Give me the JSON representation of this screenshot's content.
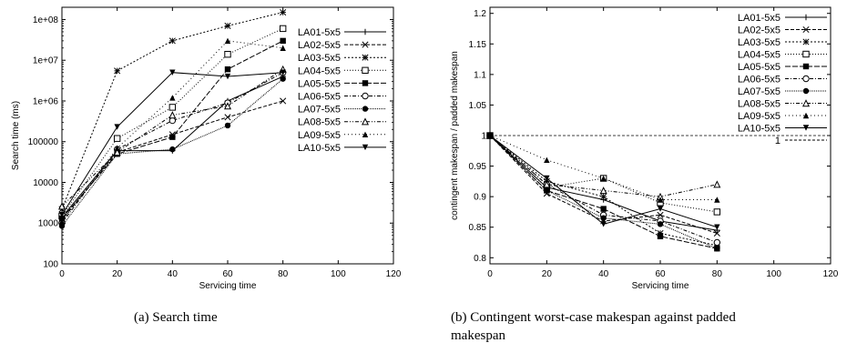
{
  "captions": {
    "left": "(a)  Search time",
    "right_line1": "(b)  Contingent   worst-case   makespan   against   padded",
    "right_line2": "makespan"
  },
  "legend_series": [
    {
      "name": "LA01-5x5",
      "marker": "plus",
      "dash": ""
    },
    {
      "name": "LA02-5x5",
      "marker": "x",
      "dash": "4,2"
    },
    {
      "name": "LA03-5x5",
      "marker": "star",
      "dash": "2,2"
    },
    {
      "name": "LA04-5x5",
      "marker": "square-open",
      "dash": "1,2"
    },
    {
      "name": "LA05-5x5",
      "marker": "square-filled",
      "dash": "6,2"
    },
    {
      "name": "LA06-5x5",
      "marker": "circle-open",
      "dash": "4,2,1,2"
    },
    {
      "name": "LA07-5x5",
      "marker": "circle-filled",
      "dash": "1,1"
    },
    {
      "name": "LA08-5x5",
      "marker": "triangle-open",
      "dash": "4,2,1,2,1,2"
    },
    {
      "name": "LA09-5x5",
      "marker": "triangle-filled",
      "dash": "1,3"
    },
    {
      "name": "LA10-5x5",
      "marker": "triangle-down",
      "dash": ""
    }
  ],
  "chart_data": [
    {
      "type": "line",
      "xlabel": "Servicing time",
      "ylabel": "Search time (ms)",
      "xlim": [
        0,
        120
      ],
      "ylim": [
        100,
        200000000
      ],
      "yscale": "log",
      "xticks": [
        "0",
        "20",
        "40",
        "60",
        "80",
        "100",
        "120"
      ],
      "yticks": [
        "100",
        "1000",
        "10000",
        "100000",
        "1e+06",
        "1e+07",
        "1e+08"
      ],
      "x": [
        0,
        20,
        40,
        60,
        80
      ],
      "series": [
        {
          "name": "LA01-5x5",
          "values": [
            1400,
            60000,
            60000,
            1000000,
            4000000
          ]
        },
        {
          "name": "LA02-5x5",
          "values": [
            1200,
            55000,
            150000,
            400000,
            1000000
          ]
        },
        {
          "name": "LA03-5x5",
          "values": [
            2200,
            5500000,
            30000000,
            70000000,
            150000000
          ]
        },
        {
          "name": "LA04-5x5",
          "values": [
            1500,
            120000,
            700000,
            14000000,
            60000000
          ]
        },
        {
          "name": "LA05-5x5",
          "values": [
            1300,
            50000,
            130000,
            6000000,
            30000000
          ]
        },
        {
          "name": "LA06-5x5",
          "values": [
            1000,
            65000,
            330000,
            900000,
            5000000
          ]
        },
        {
          "name": "LA07-5x5",
          "values": [
            850,
            50000,
            65000,
            250000,
            3500000
          ]
        },
        {
          "name": "LA08-5x5",
          "values": [
            2600,
            55000,
            450000,
            750000,
            6000000
          ]
        },
        {
          "name": "LA09-5x5",
          "values": [
            1100,
            70000,
            1200000,
            30000000,
            20000000
          ]
        },
        {
          "name": "LA10-5x5",
          "values": [
            1600,
            230000,
            5000000,
            4000000,
            5000000
          ]
        }
      ]
    },
    {
      "type": "line",
      "xlabel": "Servicing time",
      "ylabel": "contingent makespan / padded makespan",
      "xlim": [
        0,
        120
      ],
      "ylim": [
        0.79,
        1.21
      ],
      "xticks": [
        "0",
        "20",
        "40",
        "60",
        "80",
        "100",
        "120"
      ],
      "yticks": [
        "0.8",
        "0.85",
        "0.9",
        "0.95",
        "1",
        "1.05",
        "1.1",
        "1.15",
        "1.2"
      ],
      "x": [
        0,
        20,
        40,
        60,
        80
      ],
      "reference_line": {
        "name": "1",
        "value": 1.0
      },
      "series": [
        {
          "name": "LA01-5x5",
          "values": [
            1.0,
            0.915,
            0.895,
            0.86,
            0.845
          ]
        },
        {
          "name": "LA02-5x5",
          "values": [
            1.0,
            0.905,
            0.86,
            0.87,
            0.84
          ]
        },
        {
          "name": "LA03-5x5",
          "values": [
            1.0,
            0.925,
            0.9,
            0.84,
            0.82
          ]
        },
        {
          "name": "LA04-5x5",
          "values": [
            1.0,
            0.915,
            0.93,
            0.89,
            0.875
          ]
        },
        {
          "name": "LA05-5x5",
          "values": [
            1.0,
            0.91,
            0.88,
            0.835,
            0.815
          ]
        },
        {
          "name": "LA06-5x5",
          "values": [
            1.0,
            0.92,
            0.87,
            0.86,
            0.825
          ]
        },
        {
          "name": "LA07-5x5",
          "values": [
            1.0,
            0.91,
            0.865,
            0.855,
            0.815
          ]
        },
        {
          "name": "LA08-5x5",
          "values": [
            1.0,
            0.92,
            0.91,
            0.9,
            0.92
          ]
        },
        {
          "name": "LA09-5x5",
          "values": [
            1.0,
            0.96,
            0.93,
            0.895,
            0.895
          ]
        },
        {
          "name": "LA10-5x5",
          "values": [
            1.0,
            0.93,
            0.855,
            0.88,
            0.85
          ]
        }
      ]
    }
  ]
}
